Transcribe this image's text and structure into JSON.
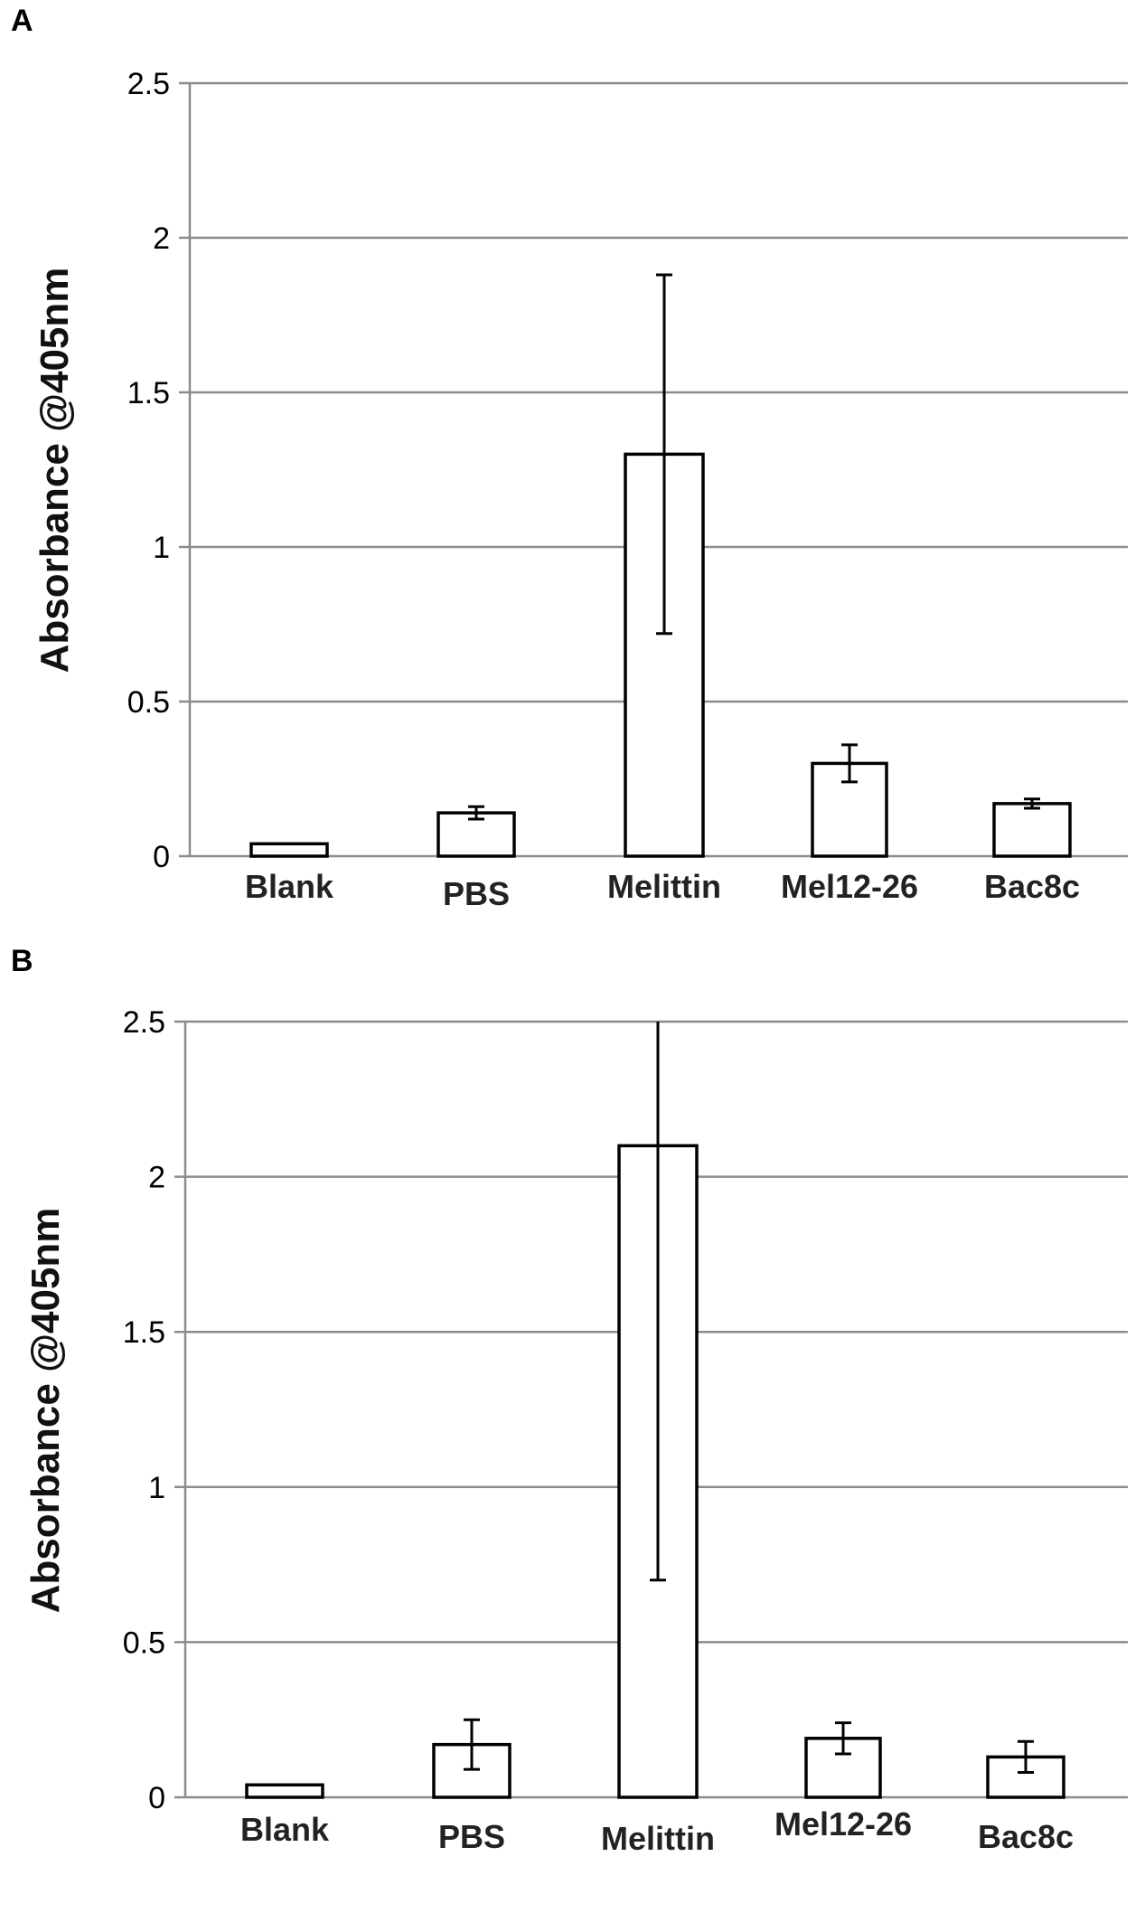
{
  "chart_data": [
    {
      "panel": "A",
      "type": "bar",
      "categories": [
        "Blank",
        "PBS",
        "Melittin",
        "Mel12-26",
        "Bac8c"
      ],
      "values": [
        0.04,
        0.14,
        1.3,
        0.3,
        0.17
      ],
      "error": [
        0.0,
        0.02,
        0.58,
        0.06,
        0.015
      ],
      "ylabel": "Absorbance @405nm",
      "xlabel": "",
      "ylim": [
        0,
        2.5
      ],
      "yticks": [
        "0",
        "0.5",
        "1",
        "1.5",
        "2",
        "2.5"
      ],
      "grid": true
    },
    {
      "panel": "B",
      "type": "bar",
      "categories": [
        "Blank",
        "PBS",
        "Melittin",
        "Mel12-26",
        "Bac8c"
      ],
      "values": [
        0.04,
        0.17,
        2.1,
        0.19,
        0.13
      ],
      "error": [
        0.0,
        0.08,
        1.4,
        0.05,
        0.05
      ],
      "ylabel": "Absorbance @405nm",
      "xlabel": "",
      "ylim": [
        0,
        2.5
      ],
      "yticks": [
        "0",
        "0.5",
        "1",
        "1.5",
        "2",
        "2.5"
      ],
      "grid": true
    }
  ]
}
